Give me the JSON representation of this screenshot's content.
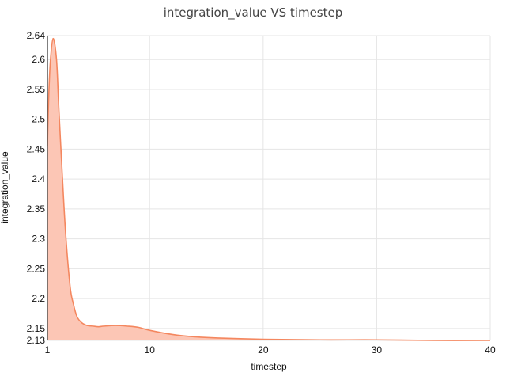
{
  "chart_data": {
    "type": "area",
    "title": "integration_value VS timestep",
    "xlabel": "timestep",
    "ylabel": "integration_value",
    "xlim": [
      1,
      40
    ],
    "ylim": [
      2.13,
      2.64
    ],
    "x_ticks": [
      1,
      10,
      20,
      30,
      40
    ],
    "y_ticks": [
      2.13,
      2.15,
      2.2,
      2.25,
      2.3,
      2.35,
      2.4,
      2.45,
      2.5,
      2.55,
      2.6,
      2.64
    ],
    "grid": true,
    "colors": {
      "line": "#f4875f",
      "fill": "#fcc6b5"
    },
    "series": [
      {
        "x": [
          1,
          1.1,
          1.25,
          1.5,
          1.8,
          2.0,
          2.3,
          2.6,
          3.0,
          3.3,
          3.6,
          4.0,
          4.5,
          5.0,
          5.5,
          6.0,
          7.0,
          8.0,
          9.0,
          10.0,
          12.0,
          14.0,
          16.0,
          20.0,
          25.0,
          30.0,
          35.0,
          40.0
        ],
        "y": [
          2.455,
          2.53,
          2.595,
          2.635,
          2.6,
          2.52,
          2.41,
          2.31,
          2.22,
          2.19,
          2.17,
          2.16,
          2.155,
          2.154,
          2.153,
          2.154,
          2.155,
          2.154,
          2.152,
          2.147,
          2.14,
          2.136,
          2.134,
          2.132,
          2.131,
          2.131,
          2.13,
          2.13
        ]
      }
    ]
  }
}
